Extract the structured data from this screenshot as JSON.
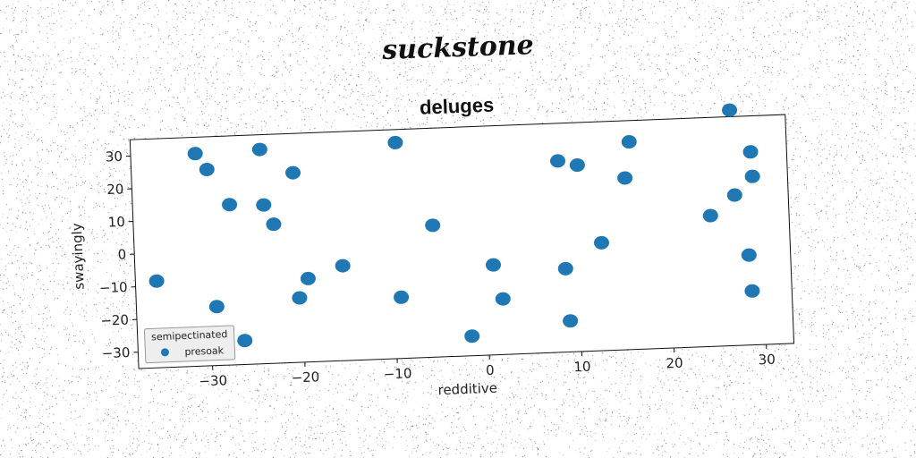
{
  "suptitle": "suckstone",
  "chart_data": {
    "type": "scatter",
    "title": "deluges",
    "xlabel": "redditive",
    "ylabel": "swayingly",
    "xlim": [
      -38,
      33
    ],
    "ylim": [
      -35,
      35
    ],
    "xticks": [
      -30,
      -20,
      -10,
      0,
      10,
      20,
      30
    ],
    "xtick_labels": [
      "−30",
      "−20",
      "−10",
      "0",
      "10",
      "20",
      "30"
    ],
    "yticks": [
      30,
      20,
      10,
      0,
      -10,
      -20,
      -30
    ],
    "ytick_labels": [
      "30",
      "20",
      "10",
      "0",
      "−10",
      "−20",
      "−30"
    ],
    "grid": false,
    "legend": {
      "title": "semipectinated",
      "placement": "lower-left"
    },
    "series": [
      {
        "name": "presoak",
        "color": "#1f77b4",
        "points": [
          [
            -35.7,
            -8.5
          ],
          [
            -31.0,
            30.0
          ],
          [
            -29.8,
            25.0
          ],
          [
            -29.3,
            -17.0
          ],
          [
            -27.5,
            14.0
          ],
          [
            -26.4,
            -27.7
          ],
          [
            -24.0,
            30.5
          ],
          [
            -23.8,
            13.5
          ],
          [
            -22.8,
            7.5
          ],
          [
            -20.5,
            23.0
          ],
          [
            -20.3,
            -15.3
          ],
          [
            -19.3,
            -9.5
          ],
          [
            -15.5,
            -6.0
          ],
          [
            -9.3,
            31.0
          ],
          [
            -9.3,
            -16.3
          ],
          [
            -5.6,
            5.3
          ],
          [
            -1.8,
            -29.0
          ],
          [
            0.8,
            -7.5
          ],
          [
            1.7,
            -18.0
          ],
          [
            8.2,
            23.5
          ],
          [
            8.6,
            -9.5
          ],
          [
            8.9,
            -25.5
          ],
          [
            10.3,
            22.0
          ],
          [
            12.6,
            -2.0
          ],
          [
            15.4,
            17.5
          ],
          [
            16.0,
            28.5
          ],
          [
            24.5,
            5.0
          ],
          [
            27.0,
            37.0
          ],
          [
            27.2,
            11.0
          ],
          [
            28.5,
            -7.5
          ],
          [
            28.7,
            -18.5
          ],
          [
            29.1,
            24.0
          ],
          [
            29.2,
            16.5
          ]
        ]
      }
    ]
  }
}
